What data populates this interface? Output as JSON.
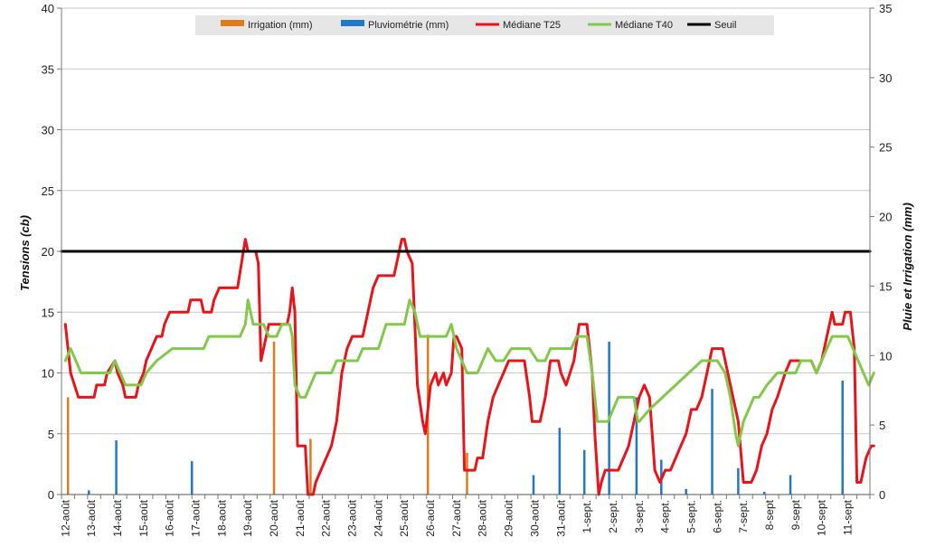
{
  "chart_data": {
    "type": "line",
    "ylabel": "Tensions (cb)",
    "y2label": "Pluie et Irrigation (mm)",
    "ylim": [
      0,
      40
    ],
    "y2lim": [
      0,
      35
    ],
    "yticks": [
      0,
      5,
      10,
      15,
      20,
      25,
      30,
      35,
      40
    ],
    "y2ticks": [
      0,
      5,
      10,
      15,
      20,
      25,
      30,
      35
    ],
    "grid": "horizontal",
    "legend": "top-center",
    "categories": [
      "12-août",
      "13-août",
      "14-août",
      "15-août",
      "16-août",
      "17-août",
      "18-août",
      "19-août",
      "20-août",
      "21-août",
      "22-août",
      "23-août",
      "24-août",
      "25-août",
      "26-août",
      "27-août",
      "28-août",
      "29-août",
      "30-août",
      "31-août",
      "1-sept.",
      "2-sept.",
      "3-sept.",
      "4-sept.",
      "5-sept.",
      "6-sept.",
      "7-sept.",
      "8-sept",
      "9-sept",
      "10-sept",
      "11-sept"
    ],
    "series": [
      {
        "name": "Irrigation (mm)",
        "axis": "right",
        "kind": "bar",
        "color": "#e07b1a",
        "points": [
          [
            0.1,
            7.0
          ],
          [
            8.0,
            11.0
          ],
          [
            9.4,
            4.0
          ],
          [
            13.9,
            11.5
          ],
          [
            15.4,
            3.0
          ]
        ]
      },
      {
        "name": "Pluviométrie (mm)",
        "axis": "right",
        "kind": "bar",
        "color": "#1f78c8",
        "points": [
          [
            0.9,
            0.3
          ],
          [
            1.95,
            3.9
          ],
          [
            4.85,
            2.4
          ],
          [
            17.95,
            1.4
          ],
          [
            18.95,
            4.8
          ],
          [
            19.9,
            3.2
          ],
          [
            20.85,
            11.0
          ],
          [
            21.9,
            7.0
          ],
          [
            22.85,
            2.5
          ],
          [
            23.8,
            0.4
          ],
          [
            24.8,
            7.6
          ],
          [
            25.8,
            1.9
          ],
          [
            26.8,
            0.2
          ],
          [
            27.8,
            1.4
          ],
          [
            29.8,
            8.2
          ]
        ]
      },
      {
        "name": "Médiane T25",
        "axis": "left",
        "kind": "line",
        "color": "#e8141a",
        "points": [
          [
            0.0,
            14
          ],
          [
            0.1,
            12
          ],
          [
            0.2,
            10
          ],
          [
            0.35,
            9
          ],
          [
            0.5,
            8
          ],
          [
            1.0,
            8
          ],
          [
            1.1,
            8
          ],
          [
            1.2,
            9
          ],
          [
            1.5,
            9
          ],
          [
            1.6,
            10
          ],
          [
            1.9,
            11
          ],
          [
            2.0,
            10
          ],
          [
            2.2,
            9
          ],
          [
            2.3,
            8
          ],
          [
            2.7,
            8
          ],
          [
            2.8,
            9
          ],
          [
            3.0,
            10
          ],
          [
            3.1,
            11
          ],
          [
            3.3,
            12
          ],
          [
            3.5,
            13
          ],
          [
            3.7,
            13
          ],
          [
            3.8,
            14
          ],
          [
            4.0,
            15
          ],
          [
            4.7,
            15
          ],
          [
            4.8,
            16
          ],
          [
            5.2,
            16
          ],
          [
            5.3,
            15
          ],
          [
            5.6,
            15
          ],
          [
            5.7,
            16
          ],
          [
            5.9,
            17
          ],
          [
            6.6,
            17
          ],
          [
            6.75,
            19
          ],
          [
            6.9,
            21
          ],
          [
            7.0,
            20
          ],
          [
            7.3,
            20
          ],
          [
            7.4,
            19
          ],
          [
            7.5,
            11
          ],
          [
            7.6,
            12
          ],
          [
            7.8,
            14
          ],
          [
            8.5,
            14
          ],
          [
            8.6,
            15
          ],
          [
            8.7,
            17
          ],
          [
            8.8,
            15
          ],
          [
            8.9,
            4
          ],
          [
            9.2,
            4
          ],
          [
            9.3,
            0
          ],
          [
            9.5,
            0
          ],
          [
            9.6,
            1
          ],
          [
            9.8,
            2
          ],
          [
            10.0,
            3
          ],
          [
            10.2,
            4
          ],
          [
            10.4,
            6
          ],
          [
            10.6,
            10
          ],
          [
            10.8,
            12
          ],
          [
            11.0,
            13
          ],
          [
            11.4,
            13
          ],
          [
            11.5,
            14
          ],
          [
            11.8,
            17
          ],
          [
            12.0,
            18
          ],
          [
            12.6,
            18
          ],
          [
            12.7,
            19
          ],
          [
            12.9,
            21
          ],
          [
            13.0,
            21
          ],
          [
            13.1,
            20
          ],
          [
            13.3,
            19
          ],
          [
            13.5,
            9
          ],
          [
            13.7,
            6
          ],
          [
            13.8,
            5
          ],
          [
            14.0,
            9
          ],
          [
            14.2,
            10
          ],
          [
            14.3,
            9
          ],
          [
            14.5,
            10
          ],
          [
            14.6,
            9
          ],
          [
            14.8,
            10
          ],
          [
            14.9,
            13
          ],
          [
            15.0,
            13
          ],
          [
            15.2,
            12
          ],
          [
            15.3,
            2
          ],
          [
            15.7,
            2
          ],
          [
            15.8,
            3
          ],
          [
            16.0,
            3
          ],
          [
            16.2,
            6
          ],
          [
            16.4,
            8
          ],
          [
            16.6,
            9
          ],
          [
            16.8,
            10
          ],
          [
            17.0,
            11
          ],
          [
            17.6,
            11
          ],
          [
            17.8,
            8
          ],
          [
            17.9,
            6
          ],
          [
            18.2,
            6
          ],
          [
            18.4,
            8
          ],
          [
            18.6,
            11
          ],
          [
            18.9,
            11
          ],
          [
            19.0,
            10
          ],
          [
            19.2,
            9
          ],
          [
            19.5,
            11
          ],
          [
            19.7,
            14
          ],
          [
            20.0,
            14
          ],
          [
            20.2,
            10
          ],
          [
            20.3,
            5
          ],
          [
            20.45,
            0
          ],
          [
            20.55,
            1
          ],
          [
            20.7,
            2
          ],
          [
            21.2,
            2
          ],
          [
            21.4,
            3
          ],
          [
            21.6,
            4
          ],
          [
            21.8,
            6
          ],
          [
            22.0,
            8
          ],
          [
            22.2,
            9
          ],
          [
            22.4,
            8
          ],
          [
            22.6,
            2
          ],
          [
            22.8,
            1
          ],
          [
            23.0,
            2
          ],
          [
            23.2,
            2
          ],
          [
            23.4,
            3
          ],
          [
            23.6,
            4
          ],
          [
            23.8,
            5
          ],
          [
            24.0,
            7
          ],
          [
            24.2,
            7
          ],
          [
            24.4,
            8
          ],
          [
            24.6,
            10
          ],
          [
            24.8,
            12
          ],
          [
            25.2,
            12
          ],
          [
            25.4,
            10
          ],
          [
            25.6,
            8
          ],
          [
            25.8,
            6
          ],
          [
            26.0,
            1
          ],
          [
            26.3,
            1
          ],
          [
            26.5,
            2
          ],
          [
            26.7,
            4
          ],
          [
            26.9,
            5
          ],
          [
            27.1,
            7
          ],
          [
            27.3,
            8
          ],
          [
            27.6,
            10
          ],
          [
            27.8,
            11
          ],
          [
            28.6,
            11
          ],
          [
            28.8,
            10
          ],
          [
            29.0,
            11
          ],
          [
            29.2,
            13
          ],
          [
            29.4,
            15
          ],
          [
            29.5,
            14
          ],
          [
            29.8,
            14
          ],
          [
            29.9,
            15
          ],
          [
            30.1,
            15
          ],
          [
            30.25,
            12
          ],
          [
            30.35,
            1
          ],
          [
            30.5,
            1
          ],
          [
            30.7,
            3
          ],
          [
            30.9,
            4
          ],
          [
            31.0,
            4
          ]
        ]
      },
      {
        "name": "Médiane T40",
        "axis": "left",
        "kind": "line",
        "color": "#82c84a",
        "points": [
          [
            0.0,
            11
          ],
          [
            0.2,
            12
          ],
          [
            0.4,
            11
          ],
          [
            0.6,
            10
          ],
          [
            1.7,
            10
          ],
          [
            1.9,
            11
          ],
          [
            2.1,
            10
          ],
          [
            2.3,
            9
          ],
          [
            2.9,
            9
          ],
          [
            3.1,
            10
          ],
          [
            3.5,
            11
          ],
          [
            4.1,
            12
          ],
          [
            5.3,
            12
          ],
          [
            5.5,
            13
          ],
          [
            6.7,
            13
          ],
          [
            6.9,
            14
          ],
          [
            7.0,
            16
          ],
          [
            7.2,
            14
          ],
          [
            7.6,
            14
          ],
          [
            7.8,
            13
          ],
          [
            8.1,
            13
          ],
          [
            8.3,
            14
          ],
          [
            8.6,
            14
          ],
          [
            8.7,
            13
          ],
          [
            8.8,
            9
          ],
          [
            9.0,
            8
          ],
          [
            9.2,
            8
          ],
          [
            9.4,
            9
          ],
          [
            9.6,
            10
          ],
          [
            10.2,
            10
          ],
          [
            10.4,
            11
          ],
          [
            11.2,
            11
          ],
          [
            11.4,
            12
          ],
          [
            12.0,
            12
          ],
          [
            12.3,
            14
          ],
          [
            13.0,
            14
          ],
          [
            13.2,
            16
          ],
          [
            13.4,
            15
          ],
          [
            13.6,
            13
          ],
          [
            14.6,
            13
          ],
          [
            14.8,
            14
          ],
          [
            15.0,
            12
          ],
          [
            15.2,
            11
          ],
          [
            15.4,
            10
          ],
          [
            15.8,
            10
          ],
          [
            16.2,
            12
          ],
          [
            16.5,
            11
          ],
          [
            16.8,
            11
          ],
          [
            17.1,
            12
          ],
          [
            17.8,
            12
          ],
          [
            18.1,
            11
          ],
          [
            18.4,
            11
          ],
          [
            18.6,
            12
          ],
          [
            19.4,
            12
          ],
          [
            19.6,
            13
          ],
          [
            20.0,
            13
          ],
          [
            20.2,
            10
          ],
          [
            20.3,
            8
          ],
          [
            20.4,
            6
          ],
          [
            20.8,
            6
          ],
          [
            21.2,
            8
          ],
          [
            21.8,
            8
          ],
          [
            21.95,
            6
          ],
          [
            22.0,
            6
          ],
          [
            22.4,
            7
          ],
          [
            22.9,
            8
          ],
          [
            23.4,
            9
          ],
          [
            23.9,
            10
          ],
          [
            24.4,
            11
          ],
          [
            25.0,
            11
          ],
          [
            25.3,
            10
          ],
          [
            25.5,
            8
          ],
          [
            25.7,
            5
          ],
          [
            25.8,
            4
          ],
          [
            26.0,
            6
          ],
          [
            26.2,
            7
          ],
          [
            26.4,
            8
          ],
          [
            26.6,
            8
          ],
          [
            26.9,
            9
          ],
          [
            27.3,
            10
          ],
          [
            28.0,
            10
          ],
          [
            28.2,
            11
          ],
          [
            28.6,
            11
          ],
          [
            28.8,
            10
          ],
          [
            29.0,
            11
          ],
          [
            29.2,
            12
          ],
          [
            29.4,
            13
          ],
          [
            29.8,
            13
          ],
          [
            30.0,
            13
          ],
          [
            30.2,
            12
          ],
          [
            30.4,
            11
          ],
          [
            30.8,
            9
          ],
          [
            31.0,
            10
          ]
        ]
      },
      {
        "name": "Seuil",
        "axis": "left",
        "kind": "line",
        "color": "#000000",
        "points": [
          [
            0,
            20
          ],
          [
            31,
            20
          ]
        ]
      }
    ]
  }
}
